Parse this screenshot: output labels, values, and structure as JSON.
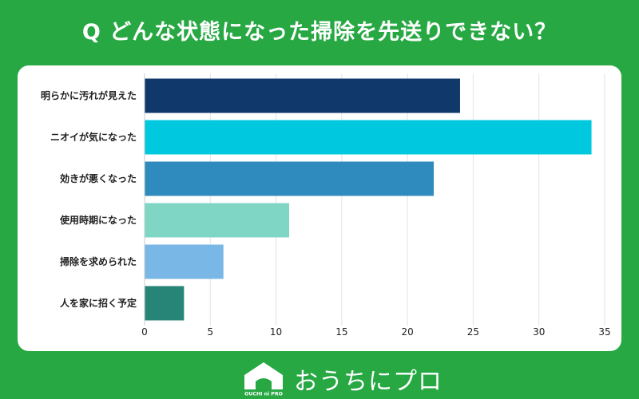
{
  "title": "Q どんな状態になった掃除を先送りできない？",
  "chart_data": {
    "type": "bar",
    "orientation": "horizontal",
    "title": "Q どんな状態になった掃除を先送りできない？",
    "categories": [
      "明らかに汚れが見えた",
      "ニオイが気になった",
      "効きが悪くなった",
      "使用時期になった",
      "掃除を求められた",
      "人を家に招く予定"
    ],
    "values": [
      24,
      34,
      22,
      11,
      6,
      3
    ],
    "colors": [
      "#10386b",
      "#00c8df",
      "#2f8bbd",
      "#7fd6c4",
      "#78b7e6",
      "#268577"
    ],
    "xlim": [
      0,
      35
    ],
    "xticks": [
      0,
      5,
      10,
      15,
      20,
      25,
      30,
      35
    ],
    "grid": true,
    "xlabel": "",
    "ylabel": ""
  },
  "footer": {
    "logo_name": "OUCHI ni PRO",
    "brand_text": "おうちにプロ"
  }
}
